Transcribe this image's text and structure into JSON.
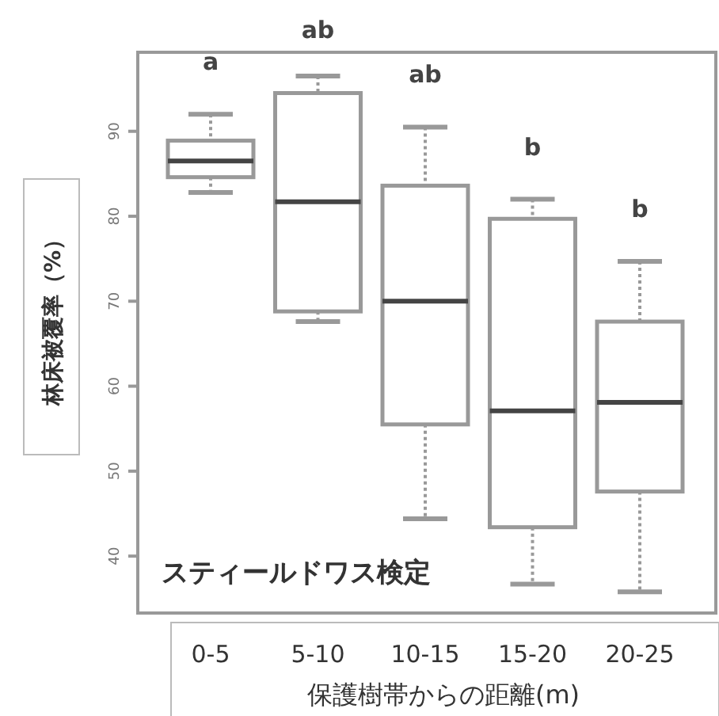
{
  "chart_data": {
    "type": "box",
    "xlabel": "保護樹帯からの距離(m)",
    "ylabel": "林床被覆率（%）",
    "categories": [
      "0-5",
      "5-10",
      "10-15",
      "15-20",
      "20-25"
    ],
    "boxes": [
      {
        "low": 82.8,
        "q1": 84.6,
        "median": 86.5,
        "q3": 88.9,
        "high": 92.0
      },
      {
        "low": 67.6,
        "q1": 68.8,
        "median": 81.7,
        "q3": 94.5,
        "high": 96.5
      },
      {
        "low": 44.4,
        "q1": 55.5,
        "median": 70.0,
        "q3": 83.6,
        "high": 90.5
      },
      {
        "low": 36.7,
        "q1": 43.4,
        "median": 57.1,
        "q3": 79.7,
        "high": 82.0
      },
      {
        "low": 35.8,
        "q1": 47.6,
        "median": 58.1,
        "q3": 67.6,
        "high": 74.7
      }
    ],
    "ylim": [
      33.3,
      99.3
    ],
    "yticks": [
      40,
      50,
      60,
      70,
      80,
      90
    ],
    "annotations": [
      "a",
      "ab",
      "ab",
      "b",
      "b",
      "スティールドワス検定"
    ],
    "grid": false
  }
}
